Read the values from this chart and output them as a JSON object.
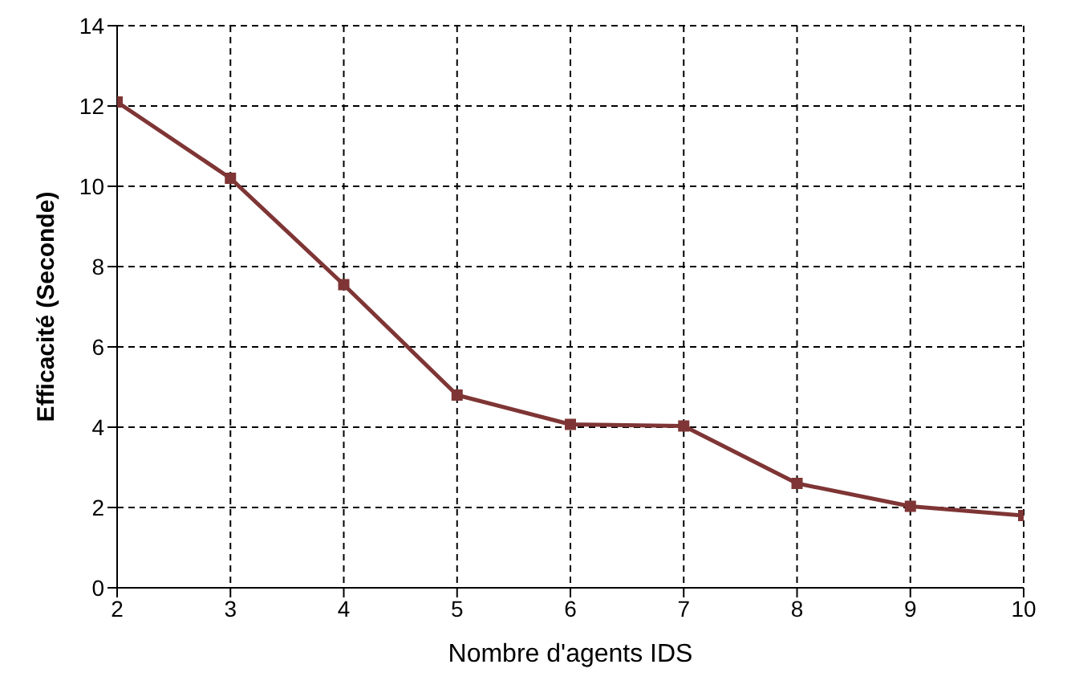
{
  "chart_data": {
    "type": "line",
    "xlabel": "Nombre d'agents IDS",
    "ylabel": "Efficacité (Seconde)",
    "x": [
      2,
      3,
      4,
      5,
      6,
      7,
      8,
      9,
      10
    ],
    "series": [
      {
        "color": "#7f3535",
        "values": [
          12.1,
          10.2,
          7.55,
          4.8,
          4.07,
          4.03,
          2.6,
          2.03,
          1.8
        ]
      }
    ],
    "xlim": [
      2,
      10
    ],
    "xticks": [
      2,
      3,
      4,
      5,
      6,
      7,
      8,
      9,
      10
    ],
    "ylim": [
      0,
      14
    ],
    "yticks": [
      0,
      2,
      4,
      6,
      8,
      10,
      12,
      14
    ],
    "grid": true,
    "marker": "square",
    "line_style": "solid",
    "legend": false
  }
}
